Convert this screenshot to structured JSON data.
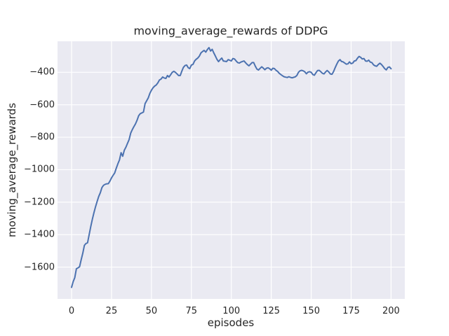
{
  "chart_data": {
    "type": "line",
    "title": "moving_average_rewards of DDPG",
    "xlabel": "episodes",
    "ylabel": "moving_average_rewards",
    "grid": true,
    "legend_position": "none",
    "xlim": [
      -8.8,
      208.6
    ],
    "ylim": [
      -1796,
      -209
    ],
    "xticks": [
      0,
      25,
      50,
      75,
      100,
      125,
      150,
      175,
      200
    ],
    "xtick_labels": [
      "0",
      "25",
      "50",
      "75",
      "100",
      "125",
      "150",
      "175",
      "200"
    ],
    "yticks": [
      -400,
      -600,
      -800,
      -1000,
      -1200,
      -1400,
      -1600
    ],
    "ytick_labels": [
      "−400",
      "−600",
      "−800",
      "−1000",
      "−1200",
      "−1400",
      "−1600"
    ],
    "x_start": 0,
    "x_step": 1,
    "series_name": "moving average reward",
    "values": [
      -1725,
      -1690,
      -1665,
      -1610,
      -1605,
      -1598,
      -1555,
      -1515,
      -1466,
      -1455,
      -1450,
      -1400,
      -1350,
      -1306,
      -1265,
      -1228,
      -1195,
      -1165,
      -1142,
      -1110,
      -1096,
      -1090,
      -1087,
      -1086,
      -1070,
      -1050,
      -1035,
      -1020,
      -990,
      -963,
      -940,
      -895,
      -917,
      -880,
      -861,
      -838,
      -815,
      -775,
      -753,
      -735,
      -718,
      -695,
      -667,
      -655,
      -650,
      -645,
      -593,
      -575,
      -558,
      -530,
      -510,
      -495,
      -485,
      -478,
      -465,
      -447,
      -442,
      -429,
      -435,
      -438,
      -420,
      -429,
      -415,
      -400,
      -394,
      -400,
      -410,
      -420,
      -420,
      -394,
      -370,
      -358,
      -355,
      -372,
      -377,
      -355,
      -351,
      -330,
      -320,
      -312,
      -300,
      -280,
      -272,
      -265,
      -276,
      -260,
      -248,
      -269,
      -258,
      -280,
      -300,
      -320,
      -334,
      -322,
      -312,
      -330,
      -332,
      -334,
      -322,
      -326,
      -330,
      -315,
      -318,
      -330,
      -340,
      -343,
      -337,
      -333,
      -330,
      -342,
      -352,
      -360,
      -350,
      -340,
      -340,
      -362,
      -380,
      -386,
      -376,
      -366,
      -374,
      -384,
      -375,
      -372,
      -378,
      -387,
      -375,
      -377,
      -388,
      -395,
      -406,
      -414,
      -421,
      -427,
      -430,
      -432,
      -427,
      -431,
      -434,
      -431,
      -428,
      -420,
      -400,
      -391,
      -388,
      -391,
      -397,
      -409,
      -399,
      -396,
      -400,
      -414,
      -418,
      -402,
      -389,
      -388,
      -396,
      -406,
      -410,
      -398,
      -389,
      -398,
      -410,
      -412,
      -396,
      -372,
      -350,
      -331,
      -322,
      -333,
      -336,
      -343,
      -350,
      -348,
      -336,
      -347,
      -343,
      -330,
      -328,
      -313,
      -302,
      -308,
      -318,
      -315,
      -330,
      -332,
      -325,
      -337,
      -340,
      -354,
      -360,
      -363,
      -352,
      -344,
      -352,
      -364,
      -377,
      -385,
      -370,
      -367,
      -378
    ],
    "colors": {
      "line": "#4c72b0",
      "axes_background": "#eaeaf2",
      "grid": "#ffffff",
      "text": "#262626",
      "figure_background": "#ffffff"
    }
  }
}
